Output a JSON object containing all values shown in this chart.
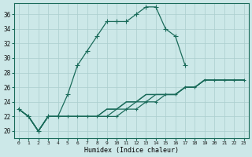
{
  "xlabel": "Humidex (Indice chaleur)",
  "background_color": "#cce8e8",
  "grid_color": "#aacece",
  "line_color": "#1a6b5a",
  "x_ticks": [
    0,
    1,
    2,
    3,
    4,
    5,
    6,
    7,
    8,
    9,
    10,
    11,
    12,
    13,
    14,
    15,
    16,
    17,
    18,
    19,
    20,
    21,
    22,
    23
  ],
  "y_ticks": [
    20,
    22,
    24,
    26,
    28,
    30,
    32,
    34,
    36
  ],
  "ylim": [
    19.0,
    37.5
  ],
  "xlim": [
    -0.5,
    23.5
  ],
  "series": [
    {
      "x": [
        0,
        1,
        2,
        3,
        4,
        5,
        6,
        7,
        8,
        9,
        10,
        11,
        12,
        13,
        14,
        15,
        16,
        17
      ],
      "y": [
        23,
        22,
        20,
        22,
        22,
        25,
        29,
        31,
        33,
        35,
        35,
        35,
        36,
        37,
        37,
        34,
        33,
        29
      ],
      "marker": "+",
      "markersize": 4,
      "linewidth": 0.9,
      "linestyle": "-"
    },
    {
      "x": [
        0,
        1,
        2,
        3,
        4,
        5,
        6,
        7,
        8,
        9,
        10,
        11,
        12,
        13,
        14,
        15,
        16,
        17,
        18,
        19,
        20,
        21,
        22,
        23
      ],
      "y": [
        23,
        22,
        20,
        22,
        22,
        22,
        22,
        22,
        22,
        23,
        23,
        24,
        24,
        25,
        25,
        25,
        25,
        26,
        26,
        27,
        27,
        27,
        27,
        27
      ],
      "marker": null,
      "markersize": 0,
      "linewidth": 0.9,
      "linestyle": "-"
    },
    {
      "x": [
        0,
        1,
        2,
        3,
        4,
        5,
        6,
        7,
        8,
        9,
        10,
        11,
        12,
        13,
        14,
        15,
        16,
        17,
        18,
        19,
        20,
        21,
        22,
        23
      ],
      "y": [
        23,
        22,
        20,
        22,
        22,
        22,
        22,
        22,
        22,
        23,
        23,
        24,
        24,
        25,
        25,
        25,
        25,
        26,
        26,
        27,
        27,
        27,
        27,
        27
      ],
      "marker": null,
      "markersize": 0,
      "linewidth": 0.9,
      "linestyle": "-"
    },
    {
      "x": [
        0,
        1,
        2,
        3,
        4,
        5,
        6,
        7,
        8,
        9,
        10,
        11,
        12,
        13,
        14,
        15,
        16,
        17,
        18,
        19,
        20,
        21,
        22,
        23
      ],
      "y": [
        23,
        22,
        20,
        22,
        22,
        22,
        22,
        22,
        22,
        22,
        23,
        23,
        24,
        24,
        25,
        25,
        25,
        26,
        26,
        27,
        27,
        27,
        27,
        27
      ],
      "marker": null,
      "markersize": 0,
      "linewidth": 0.9,
      "linestyle": "-"
    },
    {
      "x": [
        0,
        1,
        2,
        3,
        4,
        5,
        6,
        7,
        8,
        9,
        10,
        11,
        12,
        13,
        14,
        15,
        16,
        17,
        18,
        19,
        20,
        21,
        22,
        23
      ],
      "y": [
        23,
        22,
        20,
        22,
        22,
        22,
        22,
        22,
        22,
        22,
        22,
        23,
        23,
        24,
        24,
        25,
        25,
        26,
        26,
        27,
        27,
        27,
        27,
        27
      ],
      "marker": "+",
      "markersize": 3,
      "linewidth": 0.9,
      "linestyle": "-"
    }
  ]
}
